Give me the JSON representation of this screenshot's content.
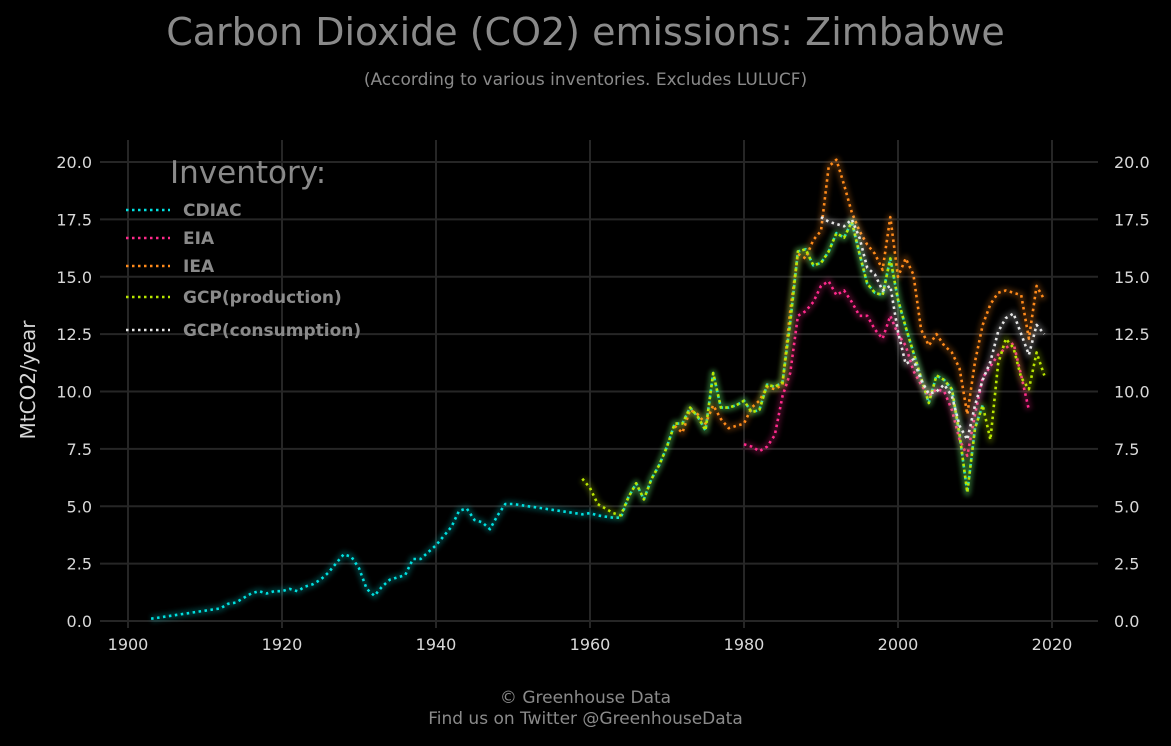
{
  "chart_data": {
    "type": "line",
    "title": "Carbon Dioxide (CO2) emissions: Zimbabwe",
    "subtitle": "(According to various inventories. Excludes LULUCF)",
    "xlabel": "",
    "ylabel": "MtCO2/year",
    "xlim": [
      1898,
      2026
    ],
    "ylim": [
      0,
      21
    ],
    "x_ticks": [
      "1900",
      "1920",
      "1940",
      "1960",
      "1980",
      "2000",
      "2020"
    ],
    "y_ticks": [
      "0.0",
      "2.5",
      "5.0",
      "7.5",
      "10.0",
      "12.5",
      "15.0",
      "17.5",
      "20.0"
    ],
    "grid": true,
    "legend": {
      "title": "Inventory:",
      "position": "top-left"
    },
    "series": [
      {
        "name": "CDIAC",
        "color": "#00e0e0",
        "points": [
          [
            1903,
            0.1
          ],
          [
            1904,
            0.15
          ],
          [
            1905,
            0.2
          ],
          [
            1906,
            0.25
          ],
          [
            1907,
            0.3
          ],
          [
            1908,
            0.35
          ],
          [
            1909,
            0.4
          ],
          [
            1910,
            0.45
          ],
          [
            1911,
            0.5
          ],
          [
            1912,
            0.55
          ],
          [
            1913,
            0.75
          ],
          [
            1914,
            0.8
          ],
          [
            1915,
            1.0
          ],
          [
            1916,
            1.2
          ],
          [
            1917,
            1.3
          ],
          [
            1918,
            1.2
          ],
          [
            1919,
            1.3
          ],
          [
            1920,
            1.3
          ],
          [
            1921,
            1.4
          ],
          [
            1922,
            1.3
          ],
          [
            1923,
            1.5
          ],
          [
            1924,
            1.6
          ],
          [
            1925,
            1.8
          ],
          [
            1926,
            2.1
          ],
          [
            1927,
            2.5
          ],
          [
            1928,
            2.9
          ],
          [
            1929,
            2.8
          ],
          [
            1930,
            2.3
          ],
          [
            1931,
            1.4
          ],
          [
            1932,
            1.1
          ],
          [
            1933,
            1.5
          ],
          [
            1934,
            1.8
          ],
          [
            1935,
            1.9
          ],
          [
            1936,
            2.0
          ],
          [
            1937,
            2.7
          ],
          [
            1938,
            2.7
          ],
          [
            1939,
            3.0
          ],
          [
            1940,
            3.3
          ],
          [
            1941,
            3.7
          ],
          [
            1942,
            4.1
          ],
          [
            1943,
            4.8
          ],
          [
            1944,
            4.9
          ],
          [
            1945,
            4.4
          ],
          [
            1946,
            4.3
          ],
          [
            1947,
            4.0
          ],
          [
            1948,
            4.6
          ],
          [
            1949,
            5.1
          ],
          [
            1950,
            5.1
          ],
          [
            1951,
            5.05
          ],
          [
            1952,
            5.0
          ],
          [
            1953,
            4.95
          ],
          [
            1954,
            4.9
          ],
          [
            1955,
            4.85
          ],
          [
            1956,
            4.8
          ],
          [
            1957,
            4.75
          ],
          [
            1958,
            4.7
          ],
          [
            1959,
            4.65
          ],
          [
            1960,
            4.7
          ],
          [
            1961,
            4.6
          ],
          [
            1962,
            4.55
          ],
          [
            1963,
            4.5
          ],
          [
            1964,
            4.5
          ],
          [
            1965,
            5.4
          ],
          [
            1966,
            6.0
          ],
          [
            1967,
            5.3
          ],
          [
            1968,
            6.2
          ],
          [
            1969,
            6.8
          ],
          [
            1970,
            7.6
          ],
          [
            1971,
            8.6
          ],
          [
            1972,
            8.6
          ],
          [
            1973,
            9.3
          ],
          [
            1974,
            8.9
          ],
          [
            1975,
            8.3
          ],
          [
            1976,
            10.8
          ],
          [
            1977,
            9.3
          ],
          [
            1978,
            9.3
          ],
          [
            1979,
            9.4
          ],
          [
            1980,
            9.6
          ],
          [
            1981,
            9.1
          ],
          [
            1982,
            9.2
          ],
          [
            1983,
            10.3
          ],
          [
            1984,
            10.2
          ],
          [
            1985,
            10.4
          ],
          [
            1986,
            13.0
          ],
          [
            1987,
            16.1
          ],
          [
            1988,
            16.2
          ],
          [
            1989,
            15.5
          ],
          [
            1990,
            15.6
          ],
          [
            1991,
            16.1
          ],
          [
            1992,
            16.9
          ],
          [
            1993,
            16.7
          ],
          [
            1994,
            17.4
          ],
          [
            1995,
            16.0
          ],
          [
            1996,
            14.7
          ],
          [
            1997,
            14.3
          ],
          [
            1998,
            14.2
          ],
          [
            1999,
            15.8
          ],
          [
            2000,
            14.0
          ],
          [
            2001,
            12.8
          ],
          [
            2002,
            11.7
          ],
          [
            2003,
            10.6
          ],
          [
            2004,
            9.5
          ],
          [
            2005,
            10.7
          ],
          [
            2006,
            10.5
          ],
          [
            2007,
            10.1
          ],
          [
            2008,
            8.1
          ],
          [
            2009,
            5.6
          ],
          [
            2010,
            8.4
          ],
          [
            2011,
            9.4
          ]
        ]
      },
      {
        "name": "EIA",
        "color": "#ff2a8c",
        "points": [
          [
            1980,
            7.7
          ],
          [
            1981,
            7.6
          ],
          [
            1982,
            7.4
          ],
          [
            1983,
            7.6
          ],
          [
            1984,
            8.1
          ],
          [
            1985,
            9.8
          ],
          [
            1986,
            10.8
          ],
          [
            1987,
            13.3
          ],
          [
            1988,
            13.5
          ],
          [
            1989,
            13.9
          ],
          [
            1990,
            14.6
          ],
          [
            1991,
            14.8
          ],
          [
            1992,
            14.2
          ],
          [
            1993,
            14.4
          ],
          [
            1994,
            13.9
          ],
          [
            1995,
            13.3
          ],
          [
            1996,
            13.3
          ],
          [
            1997,
            12.7
          ],
          [
            1998,
            12.3
          ],
          [
            1999,
            13.3
          ],
          [
            2000,
            12.5
          ],
          [
            2001,
            12.0
          ],
          [
            2002,
            10.9
          ],
          [
            2003,
            10.3
          ],
          [
            2004,
            9.8
          ],
          [
            2005,
            10.1
          ],
          [
            2006,
            10.0
          ],
          [
            2007,
            9.2
          ],
          [
            2008,
            7.9
          ],
          [
            2009,
            7.2
          ],
          [
            2010,
            9.0
          ],
          [
            2011,
            10.6
          ],
          [
            2012,
            11.1
          ],
          [
            2013,
            11.6
          ],
          [
            2014,
            11.9
          ],
          [
            2015,
            12.1
          ],
          [
            2016,
            10.7
          ],
          [
            2017,
            9.2
          ]
        ]
      },
      {
        "name": "IEA",
        "color": "#ff8a1a",
        "points": [
          [
            1971,
            8.5
          ],
          [
            1972,
            8.2
          ],
          [
            1973,
            9.2
          ],
          [
            1974,
            9.0
          ],
          [
            1975,
            8.6
          ],
          [
            1976,
            9.4
          ],
          [
            1977,
            8.8
          ],
          [
            1978,
            8.4
          ],
          [
            1979,
            8.5
          ],
          [
            1980,
            8.6
          ],
          [
            1981,
            9.3
          ],
          [
            1982,
            9.6
          ],
          [
            1983,
            10.2
          ],
          [
            1984,
            10.1
          ],
          [
            1985,
            10.3
          ],
          [
            1986,
            13.5
          ],
          [
            1987,
            16.0
          ],
          [
            1988,
            15.8
          ],
          [
            1989,
            16.6
          ],
          [
            1990,
            17.0
          ],
          [
            1991,
            19.8
          ],
          [
            1992,
            20.1
          ],
          [
            1993,
            19.0
          ],
          [
            1994,
            17.8
          ],
          [
            1995,
            17.0
          ],
          [
            1996,
            16.4
          ],
          [
            1997,
            16.0
          ],
          [
            1998,
            15.3
          ],
          [
            1999,
            17.6
          ],
          [
            2000,
            15.0
          ],
          [
            2001,
            15.8
          ],
          [
            2002,
            15.1
          ],
          [
            2003,
            12.7
          ],
          [
            2004,
            12.0
          ],
          [
            2005,
            12.5
          ],
          [
            2006,
            12.0
          ],
          [
            2007,
            11.7
          ],
          [
            2008,
            11.0
          ],
          [
            2009,
            9.0
          ],
          [
            2010,
            11.3
          ],
          [
            2011,
            12.9
          ],
          [
            2012,
            13.8
          ],
          [
            2013,
            14.3
          ],
          [
            2014,
            14.4
          ],
          [
            2015,
            14.3
          ],
          [
            2016,
            14.2
          ],
          [
            2017,
            12.3
          ],
          [
            2018,
            14.6
          ],
          [
            2019,
            14.0
          ]
        ]
      },
      {
        "name": "GCP(production)",
        "color": "#b8e600",
        "points": [
          [
            1959,
            6.2
          ],
          [
            1960,
            5.8
          ],
          [
            1961,
            5.1
          ],
          [
            1962,
            4.9
          ],
          [
            1963,
            4.7
          ],
          [
            1964,
            4.6
          ],
          [
            1965,
            5.4
          ],
          [
            1966,
            6.0
          ],
          [
            1967,
            5.3
          ],
          [
            1968,
            6.2
          ],
          [
            1969,
            6.8
          ],
          [
            1970,
            7.6
          ],
          [
            1971,
            8.6
          ],
          [
            1972,
            8.6
          ],
          [
            1973,
            9.3
          ],
          [
            1974,
            8.9
          ],
          [
            1975,
            8.3
          ],
          [
            1976,
            10.8
          ],
          [
            1977,
            9.3
          ],
          [
            1978,
            9.3
          ],
          [
            1979,
            9.4
          ],
          [
            1980,
            9.6
          ],
          [
            1981,
            9.1
          ],
          [
            1982,
            9.2
          ],
          [
            1983,
            10.3
          ],
          [
            1984,
            10.2
          ],
          [
            1985,
            10.4
          ],
          [
            1986,
            13.0
          ],
          [
            1987,
            16.1
          ],
          [
            1988,
            16.2
          ],
          [
            1989,
            15.5
          ],
          [
            1990,
            15.6
          ],
          [
            1991,
            16.1
          ],
          [
            1992,
            16.9
          ],
          [
            1993,
            16.7
          ],
          [
            1994,
            17.4
          ],
          [
            1995,
            16.0
          ],
          [
            1996,
            14.7
          ],
          [
            1997,
            14.3
          ],
          [
            1998,
            14.2
          ],
          [
            1999,
            15.8
          ],
          [
            2000,
            14.0
          ],
          [
            2001,
            12.8
          ],
          [
            2002,
            11.7
          ],
          [
            2003,
            10.6
          ],
          [
            2004,
            9.5
          ],
          [
            2005,
            10.7
          ],
          [
            2006,
            10.5
          ],
          [
            2007,
            10.1
          ],
          [
            2008,
            8.1
          ],
          [
            2009,
            5.6
          ],
          [
            2010,
            8.4
          ],
          [
            2011,
            9.4
          ],
          [
            2012,
            7.9
          ],
          [
            2013,
            11.2
          ],
          [
            2014,
            12.3
          ],
          [
            2015,
            11.9
          ],
          [
            2016,
            10.6
          ],
          [
            2017,
            10.1
          ],
          [
            2018,
            11.7
          ],
          [
            2019,
            10.7
          ]
        ]
      },
      {
        "name": "GCP(consumption)",
        "color": "#e6e6e6",
        "points": [
          [
            1990,
            17.6
          ],
          [
            1991,
            17.4
          ],
          [
            1992,
            17.3
          ],
          [
            1993,
            17.2
          ],
          [
            1994,
            17.5
          ],
          [
            1995,
            16.7
          ],
          [
            1996,
            15.4
          ],
          [
            1997,
            15.1
          ],
          [
            1998,
            14.4
          ],
          [
            1999,
            14.6
          ],
          [
            2000,
            12.6
          ],
          [
            2001,
            11.2
          ],
          [
            2002,
            11.4
          ],
          [
            2003,
            10.5
          ],
          [
            2004,
            9.9
          ],
          [
            2005,
            10.0
          ],
          [
            2006,
            10.3
          ],
          [
            2007,
            9.8
          ],
          [
            2008,
            8.5
          ],
          [
            2009,
            7.9
          ],
          [
            2010,
            9.4
          ],
          [
            2011,
            10.5
          ],
          [
            2012,
            11.3
          ],
          [
            2013,
            12.6
          ],
          [
            2014,
            13.2
          ],
          [
            2015,
            13.4
          ],
          [
            2016,
            12.5
          ],
          [
            2017,
            11.6
          ],
          [
            2018,
            12.9
          ],
          [
            2019,
            12.5
          ]
        ]
      }
    ]
  },
  "footer": {
    "copyright": "© Greenhouse Data",
    "twitter": "Find us on Twitter @GreenhouseData"
  }
}
